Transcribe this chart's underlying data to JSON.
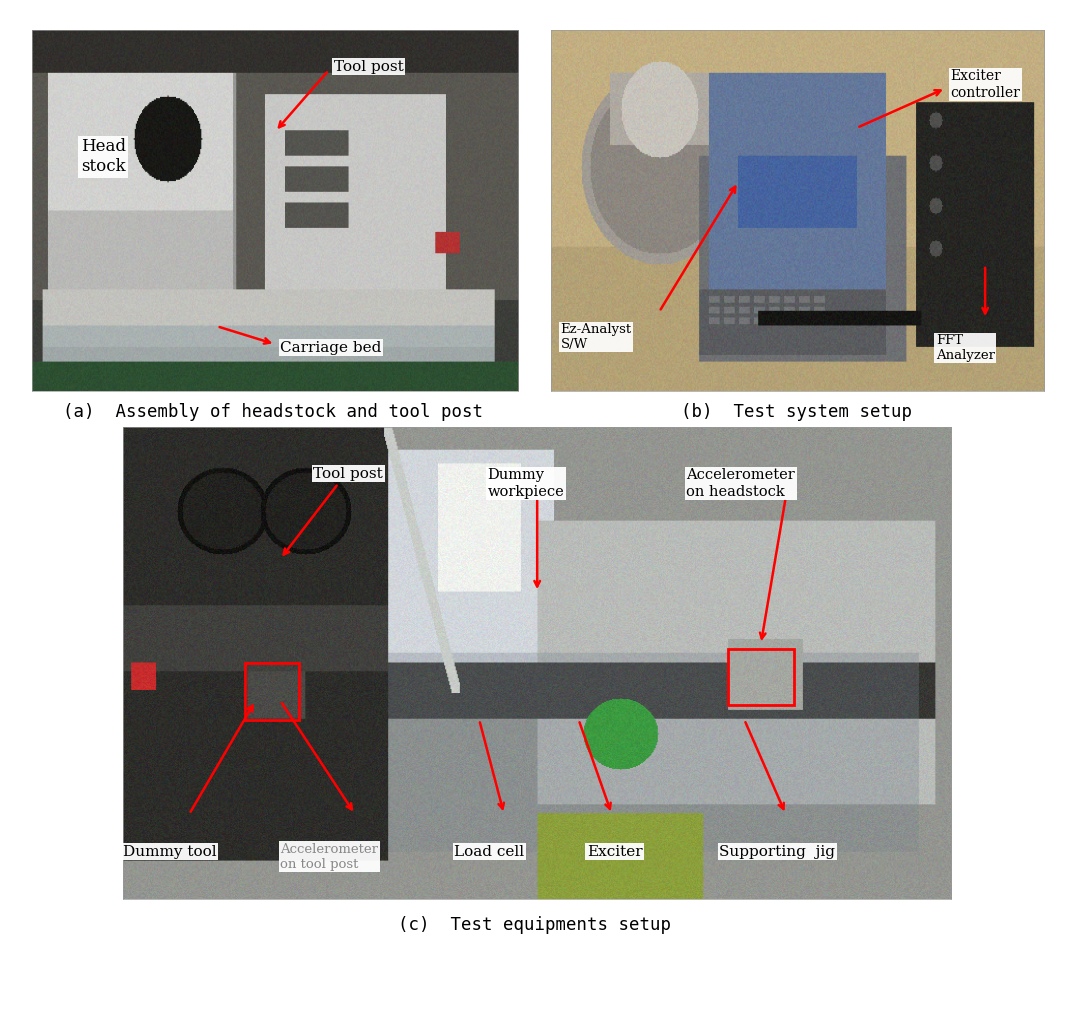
{
  "figure_width": 10.69,
  "figure_height": 10.16,
  "bg_color": "#ffffff",
  "caption_a": "(a)  Assembly of headstock and tool post",
  "caption_b": "(b)  Test system setup",
  "caption_c": "(c)  Test equipments setup",
  "caption_fontsize": 12.5,
  "caption_font": "monospace",
  "panel_a_bg": [
    0.62,
    0.6,
    0.55
  ],
  "panel_b_bg": [
    0.72,
    0.68,
    0.58
  ],
  "panel_c_bg": [
    0.55,
    0.55,
    0.52
  ]
}
